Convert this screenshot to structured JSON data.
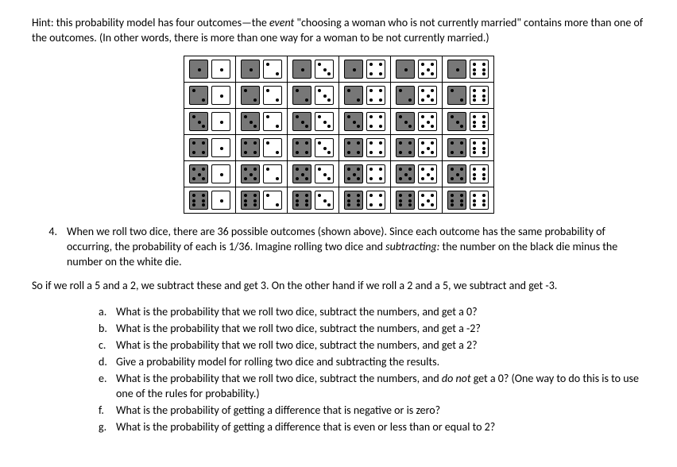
{
  "hint": "Hint: this probability model has four outcomes—the ",
  "hint_event_label": "event",
  "hint_rest": " \"choosing a woman who is not currently married\" contains more than one of the outcomes. (In other words, there is more than one way for a woman to be not currently married.)",
  "question_number": "4.",
  "question_body_1": "When we roll two dice, there are 36 possible outcomes (shown above). Since each outcome has the same probability of occurring, the probability of each is 1/36. Imagine rolling two dice and ",
  "question_body_italic": "subtracting:",
  "question_body_2": " the number on the black die minus the number on the white die.",
  "example": "So if we roll a 5 and a 2, we subtract these and get 3. On the other hand if we roll a 2 and a 5, we subtract and get -3.",
  "subs": {
    "a": {
      "lbl": "a.",
      "txt": "What is the probability that we roll two dice, subtract the numbers, and get a 0?"
    },
    "b": {
      "lbl": "b.",
      "txt": "What is the probability that we roll two dice, subtract the numbers, and get a -2?"
    },
    "c": {
      "lbl": "c.",
      "txt": "What is the probability that we roll two dice, subtract the numbers, and get a 2?"
    },
    "d": {
      "lbl": "d.",
      "txt": "Give a probability model for rolling two dice and subtracting the results."
    },
    "e": {
      "lbl": "e.",
      "txt_1": "What is the probability that we roll two dice, subtract the numbers, and ",
      "txt_italic": "do not",
      "txt_2": " get a 0? (One way to do this is to use one of the rules for probability.)"
    },
    "f": {
      "lbl": "f.",
      "txt": "What is the probability of getting a difference that is negative or is zero?"
    },
    "g": {
      "lbl": "g.",
      "txt": "What is the probability of getting a difference that is even or less than or equal to 2?"
    }
  },
  "dice": {
    "black_color": "#777777",
    "white_color": "#ffffff",
    "pip_color": "#000000",
    "border_color": "#000000",
    "rows": 6,
    "cols": 6
  }
}
